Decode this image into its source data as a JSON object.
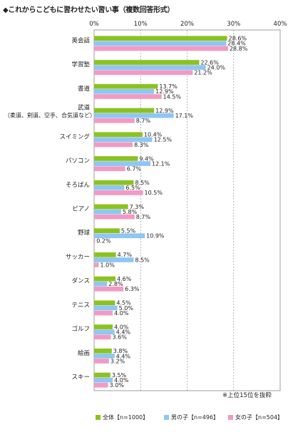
{
  "title": "◆これからこどもに習わせたい習い事（複数回答形式）",
  "note": "※上位15位を抜粋",
  "colors": {
    "all": "#8cc21f",
    "boys": "#8fc6f2",
    "girls": "#f29ac4"
  },
  "chart_data": {
    "type": "bar",
    "orientation": "horizontal",
    "xlim": [
      0,
      40
    ],
    "ticks": [
      "0%",
      "10%",
      "20%",
      "30%",
      "40%"
    ],
    "tick_values": [
      0,
      10,
      20,
      30,
      40
    ],
    "grid": true,
    "legend_position": "bottom",
    "categories": [
      "英会話",
      "学習塾",
      "書道",
      "武道\n（柔道、剣道、空手、合気道など）",
      "スイミング",
      "パソコン",
      "そろばん",
      "ピアノ",
      "野球",
      "サッカー",
      "ダンス",
      "テニス",
      "ゴルフ",
      "絵画",
      "スキー"
    ],
    "series": [
      {
        "name": "全体【n=1000】",
        "values": [
          28.6,
          22.6,
          13.7,
          12.9,
          10.4,
          9.4,
          8.5,
          7.3,
          5.5,
          4.7,
          4.6,
          4.5,
          4.0,
          3.8,
          3.5
        ]
      },
      {
        "name": "男の子【n=496】",
        "values": [
          28.4,
          24.0,
          12.9,
          17.1,
          12.5,
          12.1,
          6.5,
          5.8,
          10.9,
          8.5,
          2.8,
          5.0,
          4.4,
          4.4,
          4.0
        ]
      },
      {
        "name": "女の子【n=504】",
        "values": [
          28.8,
          21.2,
          14.5,
          8.7,
          8.3,
          6.7,
          10.5,
          8.7,
          0.2,
          1.0,
          6.3,
          4.0,
          3.6,
          3.2,
          3.0
        ]
      }
    ]
  }
}
